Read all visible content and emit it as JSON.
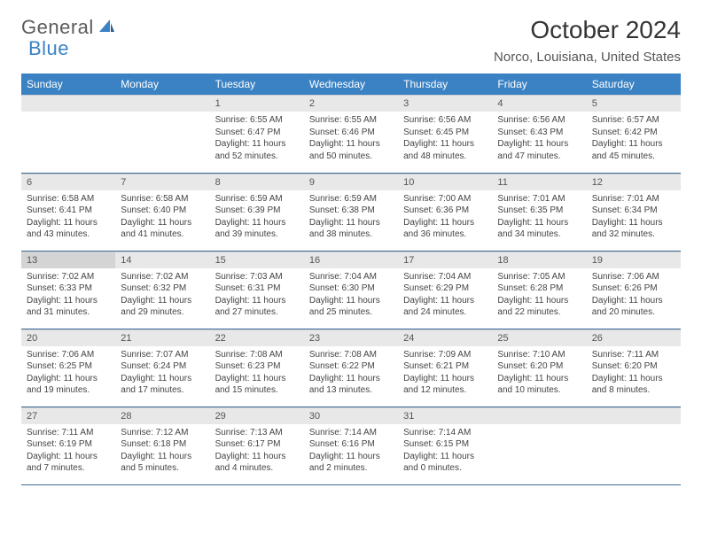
{
  "logo": {
    "word1": "General",
    "word2": "Blue"
  },
  "title": "October 2024",
  "location": "Norco, Louisiana, United States",
  "colors": {
    "header_bg": "#3b82c4",
    "header_fg": "#ffffff",
    "daynum_bg": "#e8e8e8",
    "daynum_highlight_bg": "#d4d4d4",
    "cell_border": "#3b6a9a",
    "text": "#333333",
    "body_text": "#444444"
  },
  "typography": {
    "title_fontsize": 28,
    "location_fontsize": 15,
    "dayheader_fontsize": 12,
    "daynum_fontsize": 11,
    "body_fontsize": 10
  },
  "day_headers": [
    "Sunday",
    "Monday",
    "Tuesday",
    "Wednesday",
    "Thursday",
    "Friday",
    "Saturday"
  ],
  "weeks": [
    [
      {
        "n": "",
        "sr": "",
        "ss": "",
        "dl": ""
      },
      {
        "n": "",
        "sr": "",
        "ss": "",
        "dl": ""
      },
      {
        "n": "1",
        "sr": "Sunrise: 6:55 AM",
        "ss": "Sunset: 6:47 PM",
        "dl": "Daylight: 11 hours and 52 minutes."
      },
      {
        "n": "2",
        "sr": "Sunrise: 6:55 AM",
        "ss": "Sunset: 6:46 PM",
        "dl": "Daylight: 11 hours and 50 minutes."
      },
      {
        "n": "3",
        "sr": "Sunrise: 6:56 AM",
        "ss": "Sunset: 6:45 PM",
        "dl": "Daylight: 11 hours and 48 minutes."
      },
      {
        "n": "4",
        "sr": "Sunrise: 6:56 AM",
        "ss": "Sunset: 6:43 PM",
        "dl": "Daylight: 11 hours and 47 minutes."
      },
      {
        "n": "5",
        "sr": "Sunrise: 6:57 AM",
        "ss": "Sunset: 6:42 PM",
        "dl": "Daylight: 11 hours and 45 minutes."
      }
    ],
    [
      {
        "n": "6",
        "sr": "Sunrise: 6:58 AM",
        "ss": "Sunset: 6:41 PM",
        "dl": "Daylight: 11 hours and 43 minutes."
      },
      {
        "n": "7",
        "sr": "Sunrise: 6:58 AM",
        "ss": "Sunset: 6:40 PM",
        "dl": "Daylight: 11 hours and 41 minutes."
      },
      {
        "n": "8",
        "sr": "Sunrise: 6:59 AM",
        "ss": "Sunset: 6:39 PM",
        "dl": "Daylight: 11 hours and 39 minutes."
      },
      {
        "n": "9",
        "sr": "Sunrise: 6:59 AM",
        "ss": "Sunset: 6:38 PM",
        "dl": "Daylight: 11 hours and 38 minutes."
      },
      {
        "n": "10",
        "sr": "Sunrise: 7:00 AM",
        "ss": "Sunset: 6:36 PM",
        "dl": "Daylight: 11 hours and 36 minutes."
      },
      {
        "n": "11",
        "sr": "Sunrise: 7:01 AM",
        "ss": "Sunset: 6:35 PM",
        "dl": "Daylight: 11 hours and 34 minutes."
      },
      {
        "n": "12",
        "sr": "Sunrise: 7:01 AM",
        "ss": "Sunset: 6:34 PM",
        "dl": "Daylight: 11 hours and 32 minutes."
      }
    ],
    [
      {
        "n": "13",
        "hl": true,
        "sr": "Sunrise: 7:02 AM",
        "ss": "Sunset: 6:33 PM",
        "dl": "Daylight: 11 hours and 31 minutes."
      },
      {
        "n": "14",
        "sr": "Sunrise: 7:02 AM",
        "ss": "Sunset: 6:32 PM",
        "dl": "Daylight: 11 hours and 29 minutes."
      },
      {
        "n": "15",
        "sr": "Sunrise: 7:03 AM",
        "ss": "Sunset: 6:31 PM",
        "dl": "Daylight: 11 hours and 27 minutes."
      },
      {
        "n": "16",
        "sr": "Sunrise: 7:04 AM",
        "ss": "Sunset: 6:30 PM",
        "dl": "Daylight: 11 hours and 25 minutes."
      },
      {
        "n": "17",
        "sr": "Sunrise: 7:04 AM",
        "ss": "Sunset: 6:29 PM",
        "dl": "Daylight: 11 hours and 24 minutes."
      },
      {
        "n": "18",
        "sr": "Sunrise: 7:05 AM",
        "ss": "Sunset: 6:28 PM",
        "dl": "Daylight: 11 hours and 22 minutes."
      },
      {
        "n": "19",
        "sr": "Sunrise: 7:06 AM",
        "ss": "Sunset: 6:26 PM",
        "dl": "Daylight: 11 hours and 20 minutes."
      }
    ],
    [
      {
        "n": "20",
        "sr": "Sunrise: 7:06 AM",
        "ss": "Sunset: 6:25 PM",
        "dl": "Daylight: 11 hours and 19 minutes."
      },
      {
        "n": "21",
        "sr": "Sunrise: 7:07 AM",
        "ss": "Sunset: 6:24 PM",
        "dl": "Daylight: 11 hours and 17 minutes."
      },
      {
        "n": "22",
        "sr": "Sunrise: 7:08 AM",
        "ss": "Sunset: 6:23 PM",
        "dl": "Daylight: 11 hours and 15 minutes."
      },
      {
        "n": "23",
        "sr": "Sunrise: 7:08 AM",
        "ss": "Sunset: 6:22 PM",
        "dl": "Daylight: 11 hours and 13 minutes."
      },
      {
        "n": "24",
        "sr": "Sunrise: 7:09 AM",
        "ss": "Sunset: 6:21 PM",
        "dl": "Daylight: 11 hours and 12 minutes."
      },
      {
        "n": "25",
        "sr": "Sunrise: 7:10 AM",
        "ss": "Sunset: 6:20 PM",
        "dl": "Daylight: 11 hours and 10 minutes."
      },
      {
        "n": "26",
        "sr": "Sunrise: 7:11 AM",
        "ss": "Sunset: 6:20 PM",
        "dl": "Daylight: 11 hours and 8 minutes."
      }
    ],
    [
      {
        "n": "27",
        "sr": "Sunrise: 7:11 AM",
        "ss": "Sunset: 6:19 PM",
        "dl": "Daylight: 11 hours and 7 minutes."
      },
      {
        "n": "28",
        "sr": "Sunrise: 7:12 AM",
        "ss": "Sunset: 6:18 PM",
        "dl": "Daylight: 11 hours and 5 minutes."
      },
      {
        "n": "29",
        "sr": "Sunrise: 7:13 AM",
        "ss": "Sunset: 6:17 PM",
        "dl": "Daylight: 11 hours and 4 minutes."
      },
      {
        "n": "30",
        "sr": "Sunrise: 7:14 AM",
        "ss": "Sunset: 6:16 PM",
        "dl": "Daylight: 11 hours and 2 minutes."
      },
      {
        "n": "31",
        "sr": "Sunrise: 7:14 AM",
        "ss": "Sunset: 6:15 PM",
        "dl": "Daylight: 11 hours and 0 minutes."
      },
      {
        "n": "",
        "sr": "",
        "ss": "",
        "dl": ""
      },
      {
        "n": "",
        "sr": "",
        "ss": "",
        "dl": ""
      }
    ]
  ]
}
